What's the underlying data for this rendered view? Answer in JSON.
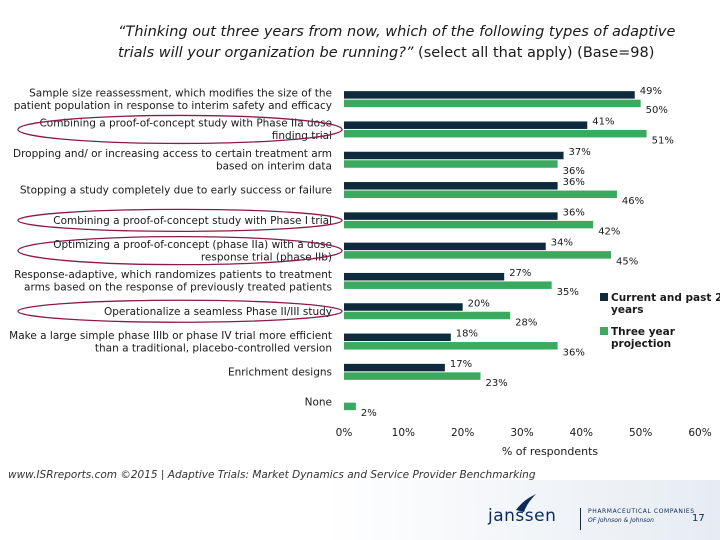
{
  "title": {
    "question": "“Thinking out three years from now, which of the following types of adaptive trials will your organization be running?”",
    "suffix": "(select all that apply) (Base=98)"
  },
  "chart_data": {
    "type": "bar",
    "orientation": "horizontal",
    "categories": [
      [
        "Sample size reassessment, which modifies the size of the",
        "patient population in response to interim safety and efficacy"
      ],
      [
        "Combining a proof-of-concept study with Phase IIa dose",
        "finding trial"
      ],
      [
        "Dropping and/ or increasing access to certain treatment arm",
        "based on interim data"
      ],
      [
        "Stopping a study completely due to early success or failure"
      ],
      [
        "Combining a proof-of-concept study with Phase I trial"
      ],
      [
        "Optimizing a proof-of-concept (phase IIa) with a dose",
        "response trial (phase IIb)"
      ],
      [
        "Response-adaptive, which randomizes patients to treatment",
        "arms based on the response of previously treated patients"
      ],
      [
        "Operationalize a seamless Phase II/III study"
      ],
      [
        "Make a large simple phase IIIb or phase IV trial more efficient",
        "than a traditional, placebo-controlled version"
      ],
      [
        "Enrichment designs"
      ],
      [
        "None"
      ]
    ],
    "highlighted": [
      1,
      4,
      5,
      7
    ],
    "series": [
      {
        "name": "Current and past 2 years",
        "color": "#0d2b3c",
        "values": [
          49,
          41,
          37,
          36,
          36,
          34,
          27,
          20,
          18,
          17,
          null
        ]
      },
      {
        "name": "Three year projection",
        "color": "#3aaa5e",
        "values": [
          50,
          51,
          36,
          46,
          42,
          45,
          35,
          28,
          36,
          23,
          2
        ]
      }
    ],
    "value_suffix": "%",
    "xlim": [
      0,
      60
    ],
    "xticks": [
      "0%",
      "10%",
      "20%",
      "30%",
      "40%",
      "50%",
      "60%"
    ],
    "xlabel": "% of respondents",
    "legend": [
      "Current and past 2 years",
      "Three year projection"
    ],
    "legend_position": "right"
  },
  "source": "www.ISRreports.com ©2015 | Adaptive Trials: Market Dynamics and Service Provider Benchmarking",
  "footer": {
    "logo": "janssen",
    "tagline1": "PHARMACEUTICAL COMPANIES",
    "tagline2": "OF Johnson & Johnson",
    "page_number": "17"
  }
}
